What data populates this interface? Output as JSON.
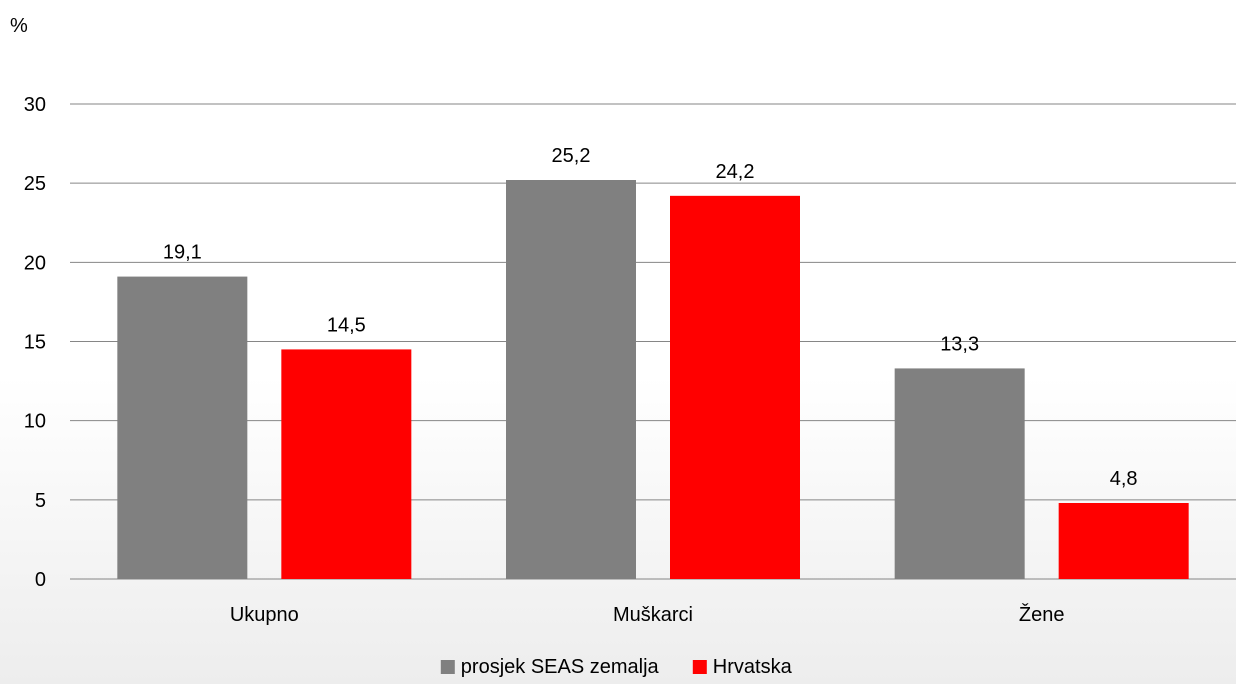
{
  "chart_data": {
    "type": "bar",
    "ylabel": "%",
    "ylim": [
      0,
      30
    ],
    "yticks": [
      0,
      5,
      10,
      15,
      20,
      25,
      30
    ],
    "grid": true,
    "legend_position": "bottom",
    "categories": [
      "Ukupno",
      "Muškarci",
      "Žene"
    ],
    "series": [
      {
        "name": "prosjek SEAS zemalja",
        "color": "#808080",
        "values": [
          19.1,
          25.2,
          13.3
        ],
        "labels": [
          "19,1",
          "25,2",
          "13,3"
        ]
      },
      {
        "name": "Hrvatska",
        "color": "#ff0000",
        "values": [
          14.5,
          24.2,
          4.8
        ],
        "labels": [
          "14,5",
          "24,2",
          "4,8"
        ]
      }
    ]
  }
}
